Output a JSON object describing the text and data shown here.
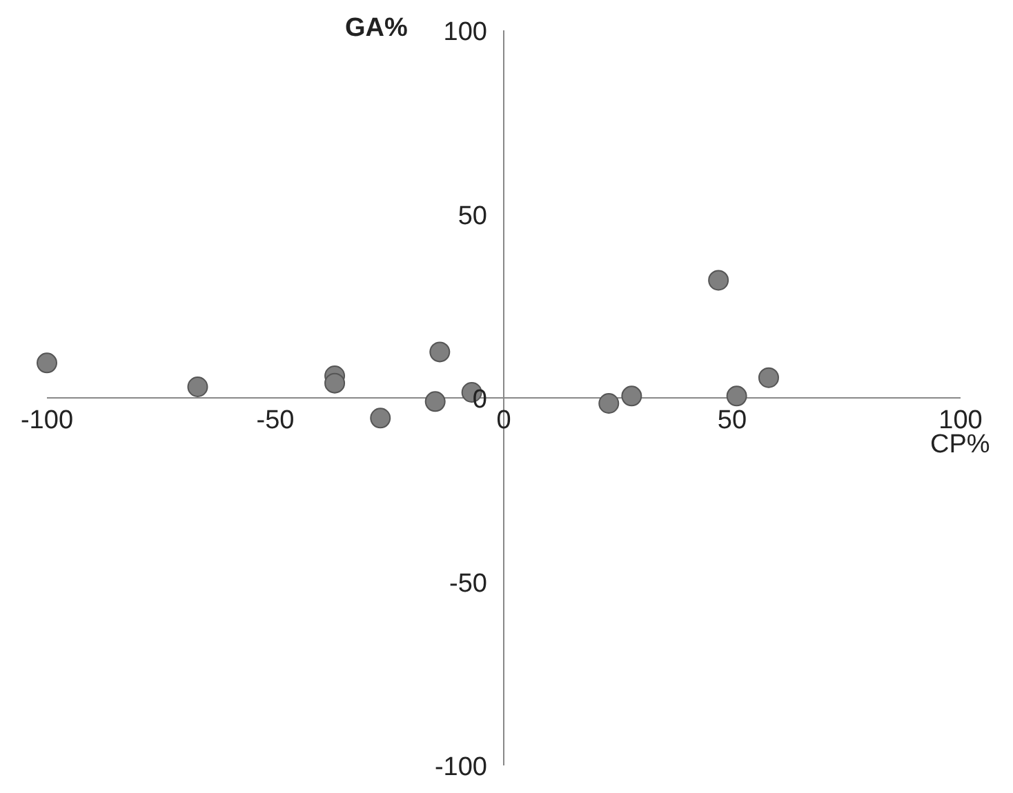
{
  "chart_data": {
    "type": "scatter",
    "xlabel": "CP%",
    "ylabel": "GA%",
    "x": [
      -100,
      -67,
      -37,
      -37,
      -27,
      -15,
      -14,
      -7,
      23,
      28,
      47,
      51,
      58
    ],
    "values": [
      9.5,
      3,
      6,
      4,
      -5.5,
      -1,
      12.5,
      1.5,
      -1.5,
      0.5,
      32,
      0.5,
      5.5
    ],
    "color": "#7f7f7f",
    "marker": "circle",
    "xlim": [
      -100,
      100
    ],
    "xticks": [
      -100,
      -50,
      0,
      50,
      100
    ],
    "ylim": [
      -100,
      100
    ],
    "yticks": [
      -100,
      -50,
      0,
      50,
      100
    ],
    "grid": false,
    "legend": false
  }
}
